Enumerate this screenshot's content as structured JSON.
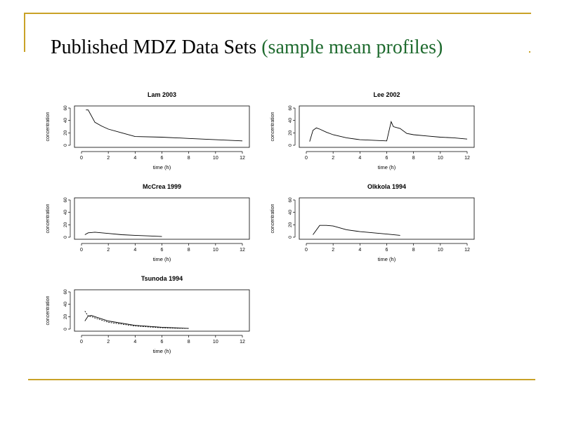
{
  "slide": {
    "title": "Published MDZ Data Sets",
    "subtitle": "(sample mean profiles)",
    "accent_color": "#c9a227",
    "subtitle_color": "#1f6b2f"
  },
  "chart_data": [
    {
      "type": "line",
      "title": "Lam 2003",
      "xlabel": "time (h)",
      "ylabel": "concentration",
      "xlim": [
        0,
        12
      ],
      "ylim": [
        0,
        60
      ],
      "xticks": [
        0,
        2,
        4,
        6,
        8,
        10,
        12
      ],
      "yticks": [
        0,
        20,
        40,
        60
      ],
      "series": [
        {
          "x": [
            0.33,
            0.5,
            1,
            1.5,
            2,
            3,
            4,
            6,
            8,
            10,
            12
          ],
          "y": [
            57,
            57,
            37,
            31,
            26,
            20,
            14,
            13,
            11,
            9,
            7
          ]
        }
      ]
    },
    {
      "type": "line",
      "title": "Lee 2002",
      "xlabel": "time (h)",
      "ylabel": "concentration",
      "xlim": [
        0,
        12
      ],
      "ylim": [
        0,
        60
      ],
      "xticks": [
        0,
        2,
        4,
        6,
        8,
        10,
        12
      ],
      "yticks": [
        0,
        20,
        40,
        60
      ],
      "series": [
        {
          "x": [
            0.25,
            0.5,
            0.75,
            1,
            1.5,
            2,
            3,
            4,
            5,
            6,
            6.33,
            6.5,
            7,
            7.5,
            8,
            9,
            10,
            11,
            12
          ],
          "y": [
            6,
            24,
            28,
            26,
            21,
            17,
            12,
            9,
            8,
            7,
            38,
            30,
            27,
            19,
            17,
            15,
            13,
            12,
            10
          ]
        }
      ]
    },
    {
      "type": "line",
      "title": "McCrea 1999",
      "xlabel": "time (h)",
      "ylabel": "concentration",
      "xlim": [
        0,
        12
      ],
      "ylim": [
        0,
        60
      ],
      "xticks": [
        0,
        2,
        4,
        6,
        8,
        10,
        12
      ],
      "yticks": [
        0,
        20,
        40,
        60
      ],
      "series": [
        {
          "x": [
            0.25,
            0.5,
            1,
            1.5,
            2,
            3,
            4,
            5,
            6
          ],
          "y": [
            4,
            7,
            8,
            7,
            6,
            4,
            3,
            2,
            1
          ]
        }
      ]
    },
    {
      "type": "line",
      "title": "Olkkola 1994",
      "xlabel": "time (h)",
      "ylabel": "concentration",
      "xlim": [
        0,
        12
      ],
      "ylim": [
        0,
        60
      ],
      "xticks": [
        0,
        2,
        4,
        6,
        8,
        10,
        12
      ],
      "yticks": [
        0,
        20,
        40,
        60
      ],
      "series": [
        {
          "x": [
            0.5,
            1,
            1.5,
            2,
            3,
            4,
            5,
            6,
            7
          ],
          "y": [
            4,
            19,
            19,
            18,
            12,
            9,
            7,
            5,
            3
          ]
        }
      ]
    },
    {
      "type": "line",
      "title": "Tsunoda 1994",
      "xlabel": "time (h)",
      "ylabel": "concentration",
      "xlim": [
        0,
        12
      ],
      "ylim": [
        0,
        60
      ],
      "xticks": [
        0,
        2,
        4,
        6,
        8,
        10,
        12
      ],
      "yticks": [
        0,
        20,
        40,
        60
      ],
      "series": [
        {
          "x": [
            0.25,
            0.5,
            0.75,
            1,
            2,
            4,
            6,
            8
          ],
          "y": [
            29,
            21,
            20,
            18,
            11,
            5,
            2,
            1
          ],
          "dash": "dashed"
        },
        {
          "x": [
            0.25,
            0.5,
            0.75,
            1,
            2,
            4,
            6,
            8
          ],
          "y": [
            13,
            21,
            22,
            20,
            13,
            6,
            3,
            1
          ]
        }
      ]
    }
  ]
}
